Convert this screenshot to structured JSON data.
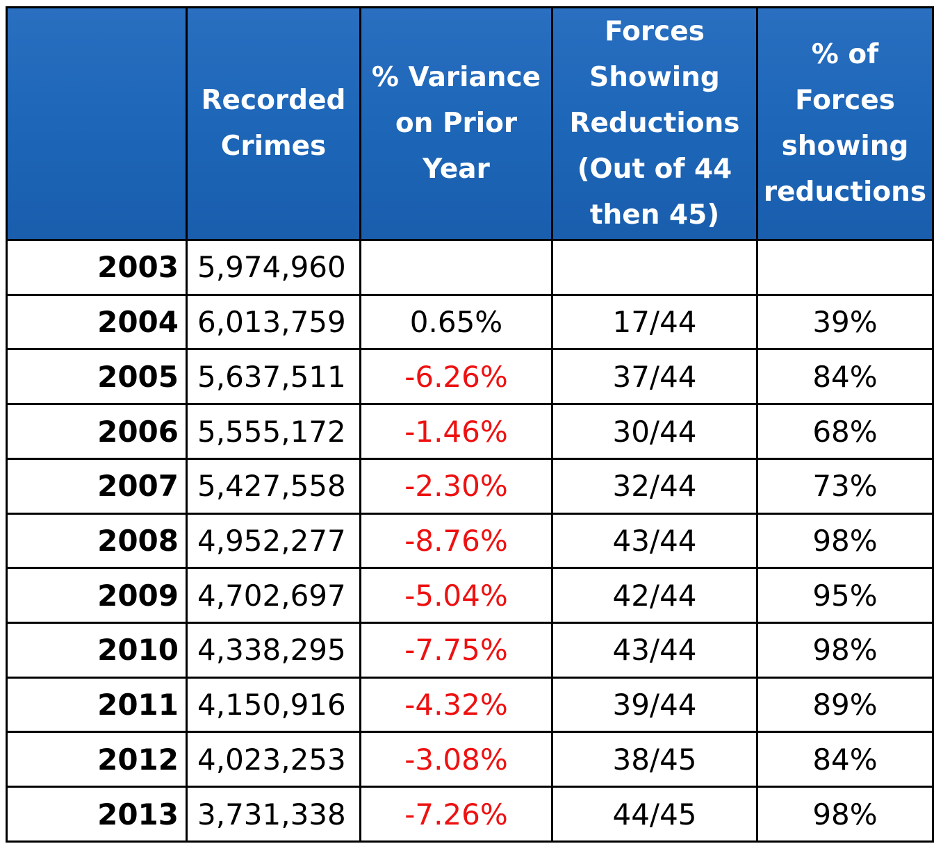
{
  "table": {
    "headers": {
      "year": "",
      "crimes": "Recorded Crimes",
      "variance": "% Variance on Prior Year",
      "forces": "Forces Showing Reductions (Out of 44 then 45)",
      "pct_forces": "% of Forces showing reductions"
    },
    "rows": [
      {
        "year": "2003",
        "crimes": "5,974,960",
        "variance": "",
        "forces": "",
        "pct": ""
      },
      {
        "year": "2004",
        "crimes": "6,013,759",
        "variance": "0.65%",
        "forces": "17/44",
        "pct": "39%"
      },
      {
        "year": "2005",
        "crimes": "5,637,511",
        "variance": "-6.26%",
        "forces": "37/44",
        "pct": "84%"
      },
      {
        "year": "2006",
        "crimes": "5,555,172",
        "variance": "-1.46%",
        "forces": "30/44",
        "pct": "68%"
      },
      {
        "year": "2007",
        "crimes": "5,427,558",
        "variance": "-2.30%",
        "forces": "32/44",
        "pct": "73%"
      },
      {
        "year": "2008",
        "crimes": "4,952,277",
        "variance": "-8.76%",
        "forces": "43/44",
        "pct": "98%"
      },
      {
        "year": "2009",
        "crimes": "4,702,697",
        "variance": "-5.04%",
        "forces": "42/44",
        "pct": "95%"
      },
      {
        "year": "2010",
        "crimes": "4,338,295",
        "variance": "-7.75%",
        "forces": "43/44",
        "pct": "98%"
      },
      {
        "year": "2011",
        "crimes": "4,150,916",
        "variance": "-4.32%",
        "forces": "39/44",
        "pct": "89%"
      },
      {
        "year": "2012",
        "crimes": "4,023,253",
        "variance": "-3.08%",
        "forces": "38/45",
        "pct": "84%"
      },
      {
        "year": "2013",
        "crimes": "3,731,338",
        "variance": "-7.26%",
        "forces": "44/45",
        "pct": "98%"
      }
    ]
  },
  "colors": {
    "header_bg": "#1d66b8",
    "header_text": "#ffffff",
    "negative_text": "#ee1111",
    "border": "#000000"
  }
}
